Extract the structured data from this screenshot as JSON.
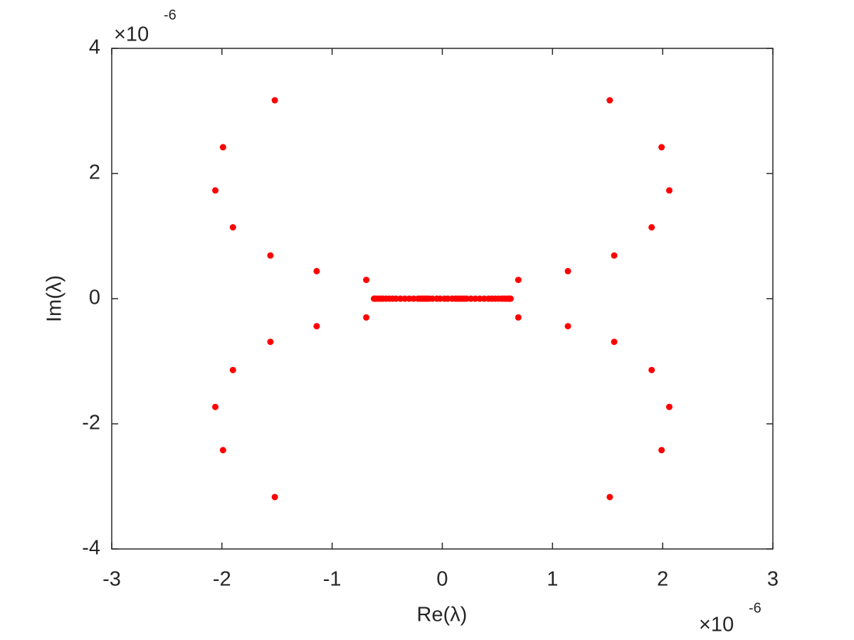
{
  "chart_data": {
    "type": "scatter",
    "x_label": "Re(λ)",
    "y_label": "Im(λ)",
    "x_multiplier": {
      "base": "×10",
      "exponent": "-6"
    },
    "y_multiplier": {
      "base": "×10",
      "exponent": "-6"
    },
    "xlim": [
      -3,
      3
    ],
    "xticks": [
      -3,
      -2,
      -1,
      0,
      1,
      2,
      3
    ],
    "ylim": [
      -4,
      4
    ],
    "yticks": [
      -4,
      -2,
      0,
      2,
      4
    ],
    "grid": false,
    "series": [
      {
        "color": "#ff0000",
        "x": [
          -1.52,
          -1.99,
          -2.06,
          -1.9,
          -1.56,
          -1.14,
          -0.69,
          -1.52,
          -1.99,
          -2.06,
          -1.9,
          -1.56,
          -1.14,
          -0.69,
          1.52,
          1.99,
          2.06,
          1.9,
          1.56,
          1.14,
          0.69,
          1.52,
          1.99,
          2.06,
          1.9,
          1.56,
          1.14,
          0.69,
          -0.62,
          -0.61,
          -0.6,
          -0.58,
          -0.56,
          -0.54,
          -0.51,
          -0.48,
          -0.45,
          -0.42,
          -0.38,
          -0.34,
          -0.3,
          -0.26,
          -0.22,
          -0.2,
          -0.18,
          -0.16,
          -0.14,
          -0.12,
          -0.09,
          -0.05,
          -0.02,
          0.02,
          0.05,
          0.09,
          0.12,
          0.14,
          0.16,
          0.18,
          0.2,
          0.22,
          0.26,
          0.3,
          0.34,
          0.38,
          0.42,
          0.45,
          0.48,
          0.51,
          0.54,
          0.56,
          0.58,
          0.6,
          0.61,
          0.62
        ],
        "values": [
          3.17,
          2.42,
          1.73,
          1.14,
          0.69,
          0.44,
          0.3,
          -3.17,
          -2.42,
          -1.73,
          -1.14,
          -0.69,
          -0.44,
          -0.3,
          3.17,
          2.42,
          1.73,
          1.14,
          0.69,
          0.44,
          0.3,
          -3.17,
          -2.42,
          -1.73,
          -1.14,
          -0.69,
          -0.44,
          -0.3,
          0,
          0,
          0,
          0,
          0,
          0,
          0,
          0,
          0,
          0,
          0,
          0,
          0,
          0,
          0,
          0,
          0,
          0,
          0,
          0,
          0,
          0,
          0,
          0,
          0,
          0,
          0,
          0,
          0,
          0,
          0,
          0,
          0,
          0,
          0,
          0,
          0,
          0,
          0,
          0,
          0,
          0,
          0,
          0,
          0,
          0
        ]
      }
    ]
  }
}
